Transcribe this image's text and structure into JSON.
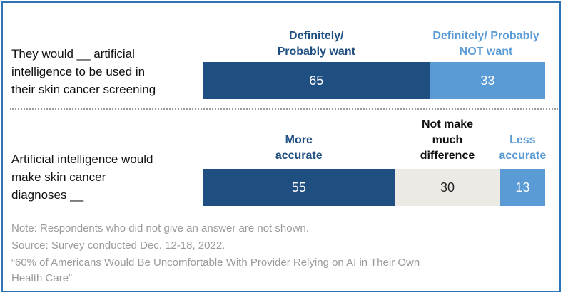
{
  "chart_data": [
    {
      "type": "bar",
      "orientation": "horizontal",
      "stacked": true,
      "category": "They would __ artificial\nintelligence to be used in\ntheir skin cancer screening",
      "series": [
        {
          "name": "Definitely/\nProbably want",
          "value": 65,
          "color": "#1f4e80",
          "text_color": "#ffffff",
          "header_color": "#1f4e80"
        },
        {
          "name": "Definitely/ Probably\nNOT want",
          "value": 33,
          "color": "#5b9bd5",
          "text_color": "#ffffff",
          "header_color": "#5b9bd5"
        }
      ]
    },
    {
      "type": "bar",
      "orientation": "horizontal",
      "stacked": true,
      "category": "Artificial intelligence would\nmake skin cancer\ndiagnoses __",
      "series": [
        {
          "name": "More\naccurate",
          "value": 55,
          "color": "#1f4e80",
          "text_color": "#ffffff",
          "header_color": "#1f4e80"
        },
        {
          "name": "Not make\nmuch\ndifference",
          "value": 30,
          "color": "#eceae4",
          "text_color": "#222222",
          "header_color": "#111111"
        },
        {
          "name": "Less\naccurate",
          "value": 13,
          "color": "#5b9bd5",
          "text_color": "#ffffff",
          "header_color": "#5b9bd5"
        }
      ]
    }
  ],
  "notes": {
    "note": "Note: Respondents who did not give an answer are not shown.",
    "source": "Source: Survey conducted Dec. 12-18, 2022.",
    "report": "“60% of Americans Would Be Uncomfortable With Provider Relying on AI in Their Own\nHealth Care”"
  }
}
